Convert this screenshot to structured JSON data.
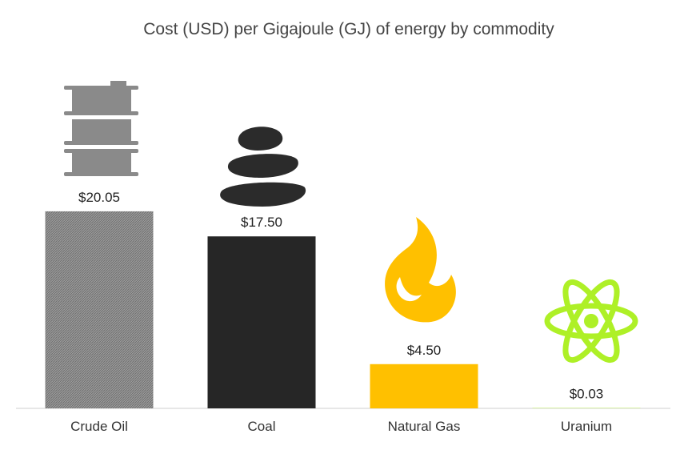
{
  "chart_data": {
    "type": "bar",
    "title": "Cost (USD) per Gigajoule (GJ) of energy by commodity",
    "xlabel": "",
    "ylabel": "",
    "categories": [
      "Crude Oil",
      "Coal",
      "Natural Gas",
      "Uranium"
    ],
    "values": [
      20.05,
      17.5,
      4.5,
      0.03
    ],
    "data_labels": [
      "$20.05",
      "$17.50",
      "$4.50",
      "$0.03"
    ],
    "ylim": [
      0,
      22
    ],
    "grid": false,
    "legend": "none",
    "colors": [
      "#8a8a8a",
      "#262626",
      "#ffc000",
      "#aef027"
    ],
    "icons": [
      "oil-barrel-icon",
      "coal-stones-icon",
      "flame-icon",
      "atom-icon"
    ]
  }
}
